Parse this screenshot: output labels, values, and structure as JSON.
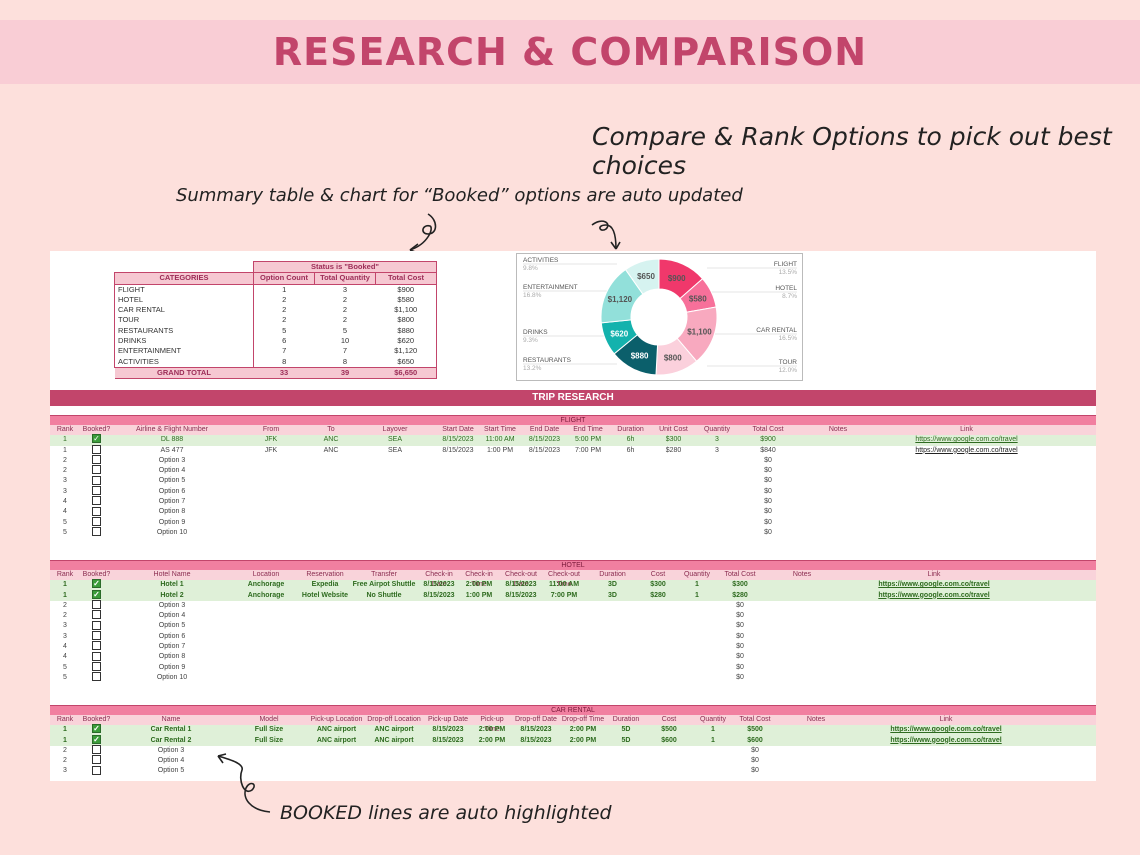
{
  "banner": {
    "title": "RESEARCH & COMPARISON"
  },
  "annotations": {
    "top_right": "Compare & Rank Options to pick out best choices",
    "summary_note": "Summary table & chart for “Booked” options are auto updated",
    "bottom_note": "BOOKED lines are auto highlighted"
  },
  "summary": {
    "status_label": "Status is \"Booked\"",
    "headers": [
      "CATEGORIES",
      "Option Count",
      "Total Quantity",
      "Total Cost"
    ],
    "rows": [
      [
        "FLIGHT",
        "1",
        "3",
        "$900"
      ],
      [
        "HOTEL",
        "2",
        "2",
        "$580"
      ],
      [
        "CAR RENTAL",
        "2",
        "2",
        "$1,100"
      ],
      [
        "TOUR",
        "2",
        "2",
        "$800"
      ],
      [
        "RESTAURANTS",
        "5",
        "5",
        "$880"
      ],
      [
        "DRINKS",
        "6",
        "10",
        "$620"
      ],
      [
        "ENTERTAINMENT",
        "7",
        "7",
        "$1,120"
      ],
      [
        "ACTIVITIES",
        "8",
        "8",
        "$650"
      ]
    ],
    "total": [
      "GRAND TOTAL",
      "33",
      "39",
      "$6,650"
    ]
  },
  "donut": {
    "slices": [
      {
        "label": "FLIGHT",
        "pct": "13.5%",
        "value": 900,
        "value_label": "$900",
        "color": "#f0386b"
      },
      {
        "label": "HOTEL",
        "pct": "8.7%",
        "value": 580,
        "value_label": "$580",
        "color": "#f7709a"
      },
      {
        "label": "CAR RENTAL",
        "pct": "16.5%",
        "value": 1100,
        "value_label": "$1,100",
        "color": "#f8a9bf"
      },
      {
        "label": "TOUR",
        "pct": "12.0%",
        "value": 800,
        "value_label": "$800",
        "color": "#fbd0dc"
      },
      {
        "label": "RESTAURANTS",
        "pct": "13.2%",
        "value": 880,
        "value_label": "$880",
        "color": "#0b5f6b"
      },
      {
        "label": "DRINKS",
        "pct": "9.3%",
        "value": 620,
        "value_label": "$620",
        "color": "#14b2ad"
      },
      {
        "label": "ENTERTAINMENT",
        "pct": "16.8%",
        "value": 1120,
        "value_label": "$1,120",
        "color": "#92e0da"
      },
      {
        "label": "ACTIVITIES",
        "pct": "9.8%",
        "value": 650,
        "value_label": "$650",
        "color": "#d6f3f0"
      }
    ]
  },
  "trip_title": "TRIP RESEARCH",
  "flight": {
    "title": "FLIGHT",
    "headers": [
      "Rank",
      "Booked?",
      "Airline & Flight Number",
      "From",
      "To",
      "Layover",
      "Start Date",
      "Start Time",
      "End Date",
      "End Time",
      "Duration",
      "Unit Cost",
      "Quantity",
      "Total Cost",
      "Notes",
      "Link"
    ],
    "rows": [
      {
        "booked": true,
        "cells": [
          "1",
          "",
          "DL 888",
          "JFK",
          "ANC",
          "SEA",
          "8/15/2023",
          "11:00 AM",
          "8/15/2023",
          "5:00 PM",
          "6h",
          "$300",
          "3",
          "$900",
          "",
          "https://www.google.com.co/travel"
        ]
      },
      {
        "booked": false,
        "cells": [
          "1",
          "",
          "AS 477",
          "JFK",
          "ANC",
          "SEA",
          "8/15/2023",
          "1:00 PM",
          "8/15/2023",
          "7:00 PM",
          "6h",
          "$280",
          "3",
          "$840",
          "",
          "https://www.google.com.co/travel"
        ]
      },
      {
        "booked": false,
        "cells": [
          "2",
          "",
          "Option 3",
          "",
          "",
          "",
          "",
          "",
          "",
          "",
          "",
          "",
          "",
          "$0",
          "",
          ""
        ]
      },
      {
        "booked": false,
        "cells": [
          "2",
          "",
          "Option 4",
          "",
          "",
          "",
          "",
          "",
          "",
          "",
          "",
          "",
          "",
          "$0",
          "",
          ""
        ]
      },
      {
        "booked": false,
        "cells": [
          "3",
          "",
          "Option 5",
          "",
          "",
          "",
          "",
          "",
          "",
          "",
          "",
          "",
          "",
          "$0",
          "",
          ""
        ]
      },
      {
        "booked": false,
        "cells": [
          "3",
          "",
          "Option 6",
          "",
          "",
          "",
          "",
          "",
          "",
          "",
          "",
          "",
          "",
          "$0",
          "",
          ""
        ]
      },
      {
        "booked": false,
        "cells": [
          "4",
          "",
          "Option 7",
          "",
          "",
          "",
          "",
          "",
          "",
          "",
          "",
          "",
          "",
          "$0",
          "",
          ""
        ]
      },
      {
        "booked": false,
        "cells": [
          "4",
          "",
          "Option 8",
          "",
          "",
          "",
          "",
          "",
          "",
          "",
          "",
          "",
          "",
          "$0",
          "",
          ""
        ]
      },
      {
        "booked": false,
        "cells": [
          "5",
          "",
          "Option 9",
          "",
          "",
          "",
          "",
          "",
          "",
          "",
          "",
          "",
          "",
          "$0",
          "",
          ""
        ]
      },
      {
        "booked": false,
        "cells": [
          "5",
          "",
          "Option 10",
          "",
          "",
          "",
          "",
          "",
          "",
          "",
          "",
          "",
          "",
          "$0",
          "",
          ""
        ]
      }
    ]
  },
  "hotel": {
    "title": "HOTEL",
    "headers": [
      "Rank",
      "Booked?",
      "Hotel Name",
      "Location",
      "Reservation",
      "Transfer",
      "Check-in Date",
      "Check-in Time",
      "Check-out Date",
      "Check-out Time",
      "Duration",
      "Cost",
      "Quantity",
      "Total Cost",
      "Notes",
      "Link"
    ],
    "rows": [
      {
        "booked": true,
        "cells": [
          "1",
          "",
          "Hotel 1",
          "Anchorage",
          "Expedia",
          "Free Airpot Shuttle",
          "8/15/2023",
          "2:00 PM",
          "8/15/2023",
          "11:00 AM",
          "3D",
          "$300",
          "1",
          "$300",
          "",
          "https://www.google.com.co/travel"
        ]
      },
      {
        "booked": true,
        "cells": [
          "1",
          "",
          "Hotel 2",
          "Anchorage",
          "Hotel Website",
          "No Shuttle",
          "8/15/2023",
          "1:00 PM",
          "8/15/2023",
          "7:00 PM",
          "3D",
          "$280",
          "1",
          "$280",
          "",
          "https://www.google.com.co/travel"
        ]
      },
      {
        "booked": false,
        "cells": [
          "2",
          "",
          "Option 3",
          "",
          "",
          "",
          "",
          "",
          "",
          "",
          "",
          "",
          "",
          "$0",
          "",
          ""
        ]
      },
      {
        "booked": false,
        "cells": [
          "2",
          "",
          "Option 4",
          "",
          "",
          "",
          "",
          "",
          "",
          "",
          "",
          "",
          "",
          "$0",
          "",
          ""
        ]
      },
      {
        "booked": false,
        "cells": [
          "3",
          "",
          "Option 5",
          "",
          "",
          "",
          "",
          "",
          "",
          "",
          "",
          "",
          "",
          "$0",
          "",
          ""
        ]
      },
      {
        "booked": false,
        "cells": [
          "3",
          "",
          "Option 6",
          "",
          "",
          "",
          "",
          "",
          "",
          "",
          "",
          "",
          "",
          "$0",
          "",
          ""
        ]
      },
      {
        "booked": false,
        "cells": [
          "4",
          "",
          "Option 7",
          "",
          "",
          "",
          "",
          "",
          "",
          "",
          "",
          "",
          "",
          "$0",
          "",
          ""
        ]
      },
      {
        "booked": false,
        "cells": [
          "4",
          "",
          "Option 8",
          "",
          "",
          "",
          "",
          "",
          "",
          "",
          "",
          "",
          "",
          "$0",
          "",
          ""
        ]
      },
      {
        "booked": false,
        "cells": [
          "5",
          "",
          "Option 9",
          "",
          "",
          "",
          "",
          "",
          "",
          "",
          "",
          "",
          "",
          "$0",
          "",
          ""
        ]
      },
      {
        "booked": false,
        "cells": [
          "5",
          "",
          "Option 10",
          "",
          "",
          "",
          "",
          "",
          "",
          "",
          "",
          "",
          "",
          "$0",
          "",
          ""
        ]
      }
    ]
  },
  "car": {
    "title": "CAR RENTAL",
    "headers": [
      "Rank",
      "Booked?",
      "Name",
      "Model",
      "Pick-up Location",
      "Drop-off Location",
      "Pick-up Date",
      "Pick-up Time",
      "Drop-off Date",
      "Drop-off Time",
      "Duration",
      "Cost",
      "Quantity",
      "Total Cost",
      "Notes",
      "Link"
    ],
    "rows": [
      {
        "booked": true,
        "cells": [
          "1",
          "",
          "Car Rental 1",
          "Full Size",
          "ANC airport",
          "ANC airport",
          "8/15/2023",
          "2:00 PM",
          "8/15/2023",
          "2:00 PM",
          "5D",
          "$500",
          "1",
          "$500",
          "",
          "https://www.google.com.co/travel"
        ]
      },
      {
        "booked": true,
        "cells": [
          "1",
          "",
          "Car Rental 2",
          "Full Size",
          "ANC airport",
          "ANC airport",
          "8/15/2023",
          "2:00 PM",
          "8/15/2023",
          "2:00 PM",
          "5D",
          "$600",
          "1",
          "$600",
          "",
          "https://www.google.com.co/travel"
        ]
      },
      {
        "booked": false,
        "cells": [
          "2",
          "",
          "Option 3",
          "",
          "",
          "",
          "",
          "",
          "",
          "",
          "",
          "",
          "",
          "$0",
          "",
          ""
        ]
      },
      {
        "booked": false,
        "cells": [
          "2",
          "",
          "Option 4",
          "",
          "",
          "",
          "",
          "",
          "",
          "",
          "",
          "",
          "",
          "$0",
          "",
          ""
        ]
      },
      {
        "booked": false,
        "cells": [
          "3",
          "",
          "Option 5",
          "",
          "",
          "",
          "",
          "",
          "",
          "",
          "",
          "",
          "",
          "$0",
          "",
          ""
        ]
      }
    ]
  }
}
